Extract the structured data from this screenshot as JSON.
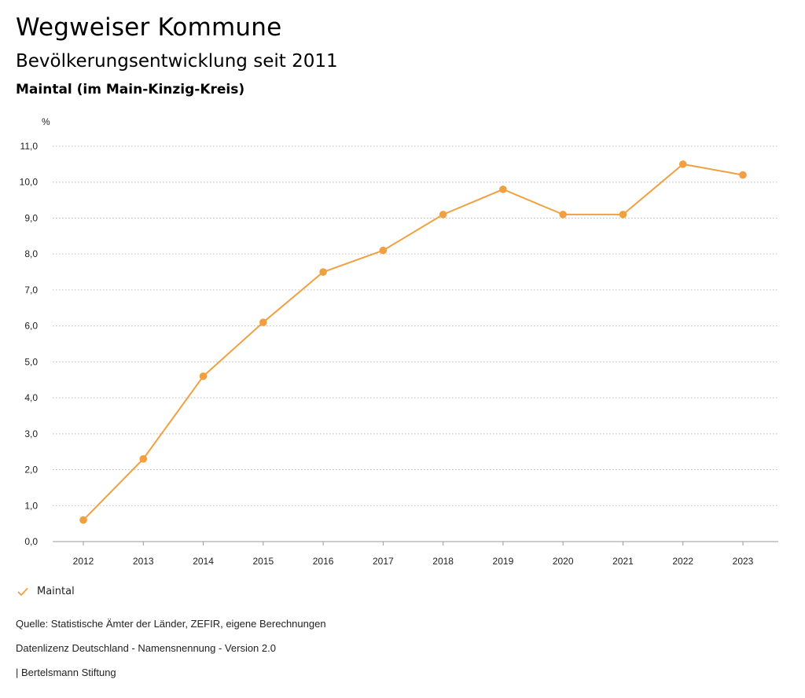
{
  "header": {
    "title": "Wegweiser Kommune",
    "subtitle": "Bevölkerungsentwicklung seit 2011",
    "region": "Maintal (im Main-Kinzig-Kreis)"
  },
  "chart_data": {
    "type": "line",
    "title": "Bevölkerungsentwicklung seit 2011",
    "ylabel": "%",
    "xlabel": "",
    "x": [
      "2012",
      "2013",
      "2014",
      "2015",
      "2016",
      "2017",
      "2018",
      "2019",
      "2020",
      "2021",
      "2022",
      "2023"
    ],
    "y_ticks": [
      0,
      1,
      2,
      3,
      4,
      5,
      6,
      7,
      8,
      9,
      10,
      11
    ],
    "y_tick_labels": [
      "0,0",
      "1,0",
      "2,0",
      "3,0",
      "4,0",
      "5,0",
      "6,0",
      "7,0",
      "8,0",
      "9,0",
      "10,0",
      "11,0"
    ],
    "ylim": [
      0,
      11
    ],
    "grid": true,
    "series": [
      {
        "name": "Maintal",
        "values": [
          0.6,
          2.3,
          4.6,
          6.1,
          7.5,
          8.1,
          9.1,
          9.8,
          9.1,
          9.1,
          10.5,
          10.2
        ]
      }
    ]
  },
  "colors": {
    "series": "#f0a040",
    "grid": "#bbbbbb",
    "axis": "#999999"
  },
  "legend": {
    "icon": "check-icon",
    "label": "Maintal"
  },
  "footer": {
    "source": "Quelle: Statistische Ämter der Länder, ZEFIR, eigene Berechnungen",
    "license": "Datenlizenz Deutschland - Namensnennung - Version 2.0",
    "publisher": "| Bertelsmann Stiftung"
  }
}
